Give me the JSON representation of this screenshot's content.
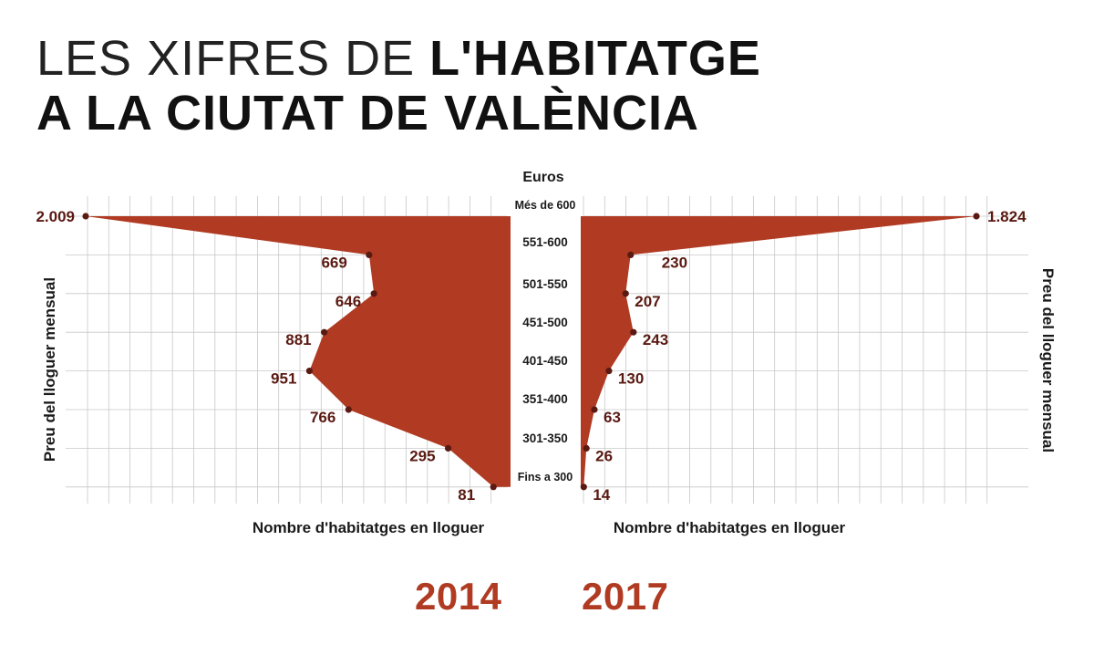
{
  "title": {
    "line1_light": "LES XIFRES DE ",
    "line1_bold": "L'HABITATGE",
    "line2_bold": "A LA CIUTAT DE VALÈNCIA"
  },
  "colors": {
    "area": "#b03a22",
    "point": "#5a1a12",
    "value_label": "#5a1a12",
    "year": "#b03a22",
    "grid": "#c8c8c8"
  },
  "chart_data": {
    "type": "area",
    "category_axis_label": "Euros",
    "y_axis_label": "Preu del lloguer mensual",
    "x_axis_label_left": "Nombre d'habitatges en lloguer",
    "x_axis_label_right": "Nombre d'habitatges en lloguer",
    "categories": [
      "Més de 600",
      "551-600",
      "501-550",
      "451-500",
      "401-450",
      "351-400",
      "301-350",
      "Fins a 300"
    ],
    "series": [
      {
        "name": "2014",
        "values": [
          2009,
          669,
          646,
          881,
          951,
          766,
          295,
          81
        ],
        "labels": [
          "2.009",
          "669",
          "646",
          "881",
          "951",
          "766",
          "295",
          "81"
        ]
      },
      {
        "name": "2017",
        "values": [
          1824,
          230,
          207,
          243,
          130,
          63,
          26,
          14
        ],
        "labels": [
          "1.824",
          "230",
          "207",
          "243",
          "130",
          "63",
          "26",
          "14"
        ]
      }
    ],
    "grid": true
  }
}
